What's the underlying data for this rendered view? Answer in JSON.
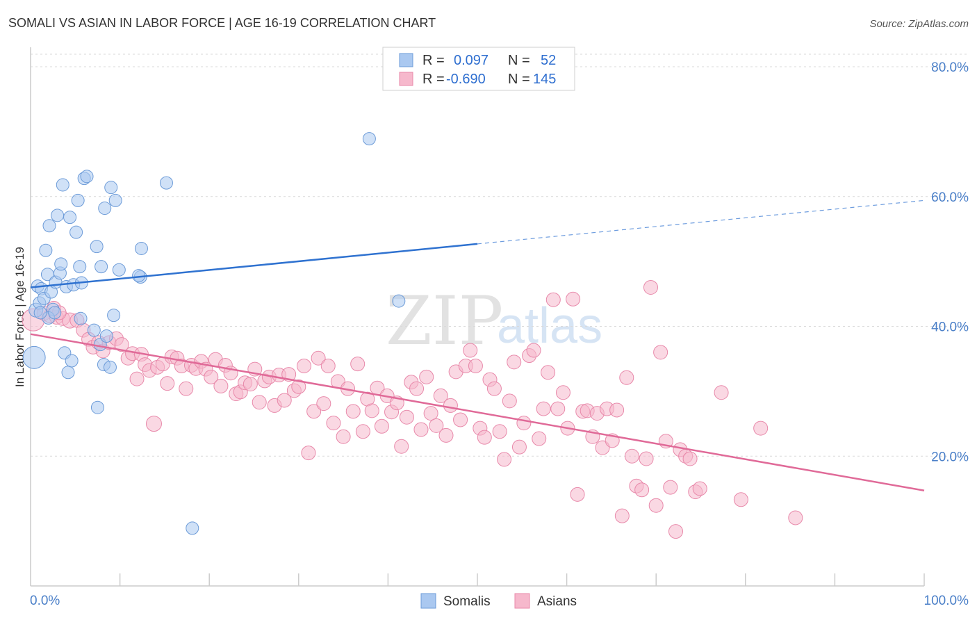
{
  "chart_data": {
    "type": "scatter",
    "title": "SOMALI VS ASIAN IN LABOR FORCE | AGE 16-19 CORRELATION CHART",
    "source": "Source: ZipAtlas.com",
    "ylabel": "In Labor Force | Age 16-19",
    "xlim": [
      0,
      100
    ],
    "ylim": [
      0,
      82
    ],
    "y_ticks": [
      {
        "value": 20,
        "label": "20.0%"
      },
      {
        "value": 40,
        "label": "40.0%"
      },
      {
        "value": 60,
        "label": "60.0%"
      },
      {
        "value": 80,
        "label": "80.0%"
      }
    ],
    "x_tick_labels": {
      "min": "0.0%",
      "max": "100.0%"
    },
    "legend": {
      "somali": {
        "r_label": "R =",
        "r_value": "0.097",
        "n_label": "N =",
        "n_value": "52"
      },
      "asian": {
        "r_label": "R =",
        "r_value": "-0.690",
        "n_label": "N =",
        "n_value": "145"
      }
    },
    "watermark": {
      "zip": "ZIP",
      "atlas": "atlas"
    },
    "colors": {
      "somali_fill": "#aac8f0",
      "somali_stroke": "#6c9bd8",
      "somali_line": "#2f72d0",
      "asian_fill": "#f6b8cc",
      "asian_stroke": "#e889aa",
      "asian_line": "#e06a98",
      "grid": "#d9d9d9",
      "axis": "#cccccc"
    },
    "series": [
      {
        "name": "Somalis",
        "trend": {
          "x0": 0,
          "y0": 46.0,
          "x1": 50,
          "y1": 52.7,
          "x_dash_end": 100,
          "y_dash_end": 59.4
        },
        "points": [
          [
            0.4,
            35.2,
            16
          ],
          [
            0.6,
            42.5,
            10
          ],
          [
            0.8,
            46.2,
            9
          ],
          [
            1.0,
            43.6,
            9
          ],
          [
            1.2,
            45.8,
            9
          ],
          [
            1.5,
            44.3,
            9
          ],
          [
            1.7,
            51.7,
            9
          ],
          [
            1.9,
            48.0,
            9
          ],
          [
            2.1,
            55.5,
            9
          ],
          [
            2.3,
            45.3,
            9
          ],
          [
            2.5,
            42.6,
            9
          ],
          [
            2.8,
            46.8,
            9
          ],
          [
            3.0,
            57.1,
            9
          ],
          [
            3.3,
            48.2,
            9
          ],
          [
            3.4,
            49.6,
            9
          ],
          [
            3.6,
            61.8,
            9
          ],
          [
            3.8,
            35.9,
            9
          ],
          [
            4.0,
            46.1,
            9
          ],
          [
            4.2,
            32.9,
            9
          ],
          [
            4.4,
            56.8,
            9
          ],
          [
            4.6,
            34.7,
            9
          ],
          [
            4.8,
            46.4,
            9
          ],
          [
            5.1,
            54.5,
            9
          ],
          [
            5.3,
            59.4,
            9
          ],
          [
            5.5,
            49.2,
            9
          ],
          [
            5.7,
            46.7,
            9
          ],
          [
            6.0,
            62.8,
            9
          ],
          [
            6.3,
            63.1,
            9
          ],
          [
            7.1,
            39.4,
            9
          ],
          [
            7.4,
            52.3,
            9
          ],
          [
            7.5,
            27.5,
            9
          ],
          [
            7.8,
            37.2,
            9
          ],
          [
            7.9,
            49.2,
            9
          ],
          [
            8.2,
            34.1,
            9
          ],
          [
            8.3,
            58.2,
            9
          ],
          [
            8.5,
            38.5,
            9
          ],
          [
            8.9,
            33.7,
            9
          ],
          [
            9.0,
            61.4,
            9
          ],
          [
            9.3,
            41.7,
            9
          ],
          [
            9.5,
            59.4,
            9
          ],
          [
            9.9,
            48.7,
            9
          ],
          [
            12.3,
            47.6,
            9
          ],
          [
            12.4,
            52.0,
            9
          ],
          [
            12.1,
            47.8,
            9
          ],
          [
            15.2,
            62.1,
            9
          ],
          [
            18.1,
            8.9,
            9
          ],
          [
            37.9,
            68.9,
            9
          ],
          [
            41.2,
            43.9,
            9
          ],
          [
            2.0,
            41.3,
            9
          ],
          [
            5.6,
            41.2,
            9
          ],
          [
            1.1,
            42.1,
            9
          ],
          [
            2.7,
            42.1,
            9
          ]
        ]
      },
      {
        "name": "Asians",
        "trend": {
          "x0": 0,
          "y0": 38.8,
          "x1": 100,
          "y1": 14.7
        },
        "points": [
          [
            0.3,
            41.0,
            16
          ],
          [
            1.5,
            42.0,
            10
          ],
          [
            2.2,
            41.6,
            10
          ],
          [
            2.9,
            41.4,
            10
          ],
          [
            3.6,
            41.2,
            10
          ],
          [
            4.4,
            40.9,
            11
          ],
          [
            5.2,
            40.9,
            10
          ],
          [
            5.9,
            39.4,
            10
          ],
          [
            6.5,
            38.0,
            10
          ],
          [
            7.0,
            36.8,
            10
          ],
          [
            7.6,
            37.5,
            10
          ],
          [
            8.1,
            36.2,
            10
          ],
          [
            8.8,
            37.5,
            10
          ],
          [
            9.6,
            38.1,
            10
          ],
          [
            10.2,
            37.2,
            10
          ],
          [
            10.9,
            35.1,
            10
          ],
          [
            11.4,
            35.8,
            10
          ],
          [
            11.9,
            31.9,
            10
          ],
          [
            12.4,
            35.7,
            10
          ],
          [
            12.8,
            34.1,
            10
          ],
          [
            13.3,
            33.2,
            10
          ],
          [
            13.8,
            25.0,
            11
          ],
          [
            14.2,
            33.7,
            10
          ],
          [
            14.8,
            34.2,
            10
          ],
          [
            15.3,
            31.2,
            10
          ],
          [
            15.8,
            35.3,
            10
          ],
          [
            16.4,
            35.1,
            10
          ],
          [
            16.9,
            33.9,
            10
          ],
          [
            17.4,
            30.4,
            10
          ],
          [
            18.0,
            34.0,
            10
          ],
          [
            18.5,
            33.5,
            10
          ],
          [
            19.1,
            34.6,
            10
          ],
          [
            19.6,
            33.4,
            10
          ],
          [
            20.2,
            32.2,
            10
          ],
          [
            20.7,
            34.9,
            10
          ],
          [
            21.3,
            30.8,
            10
          ],
          [
            21.8,
            34.0,
            10
          ],
          [
            22.4,
            32.8,
            10
          ],
          [
            23.0,
            29.6,
            10
          ],
          [
            23.5,
            29.9,
            10
          ],
          [
            24.0,
            31.3,
            10
          ],
          [
            24.6,
            31.1,
            10
          ],
          [
            25.1,
            33.4,
            10
          ],
          [
            25.6,
            28.3,
            10
          ],
          [
            26.2,
            31.6,
            10
          ],
          [
            26.7,
            32.2,
            10
          ],
          [
            27.3,
            27.8,
            10
          ],
          [
            27.8,
            32.5,
            10
          ],
          [
            28.4,
            28.6,
            10
          ],
          [
            28.9,
            32.6,
            10
          ],
          [
            29.5,
            30.1,
            10
          ],
          [
            30.0,
            30.7,
            10
          ],
          [
            30.6,
            33.9,
            10
          ],
          [
            31.1,
            20.5,
            10
          ],
          [
            31.7,
            26.9,
            10
          ],
          [
            32.2,
            35.1,
            10
          ],
          [
            32.8,
            28.1,
            10
          ],
          [
            33.3,
            33.9,
            10
          ],
          [
            33.9,
            25.1,
            10
          ],
          [
            34.4,
            31.5,
            10
          ],
          [
            35.0,
            23.0,
            10
          ],
          [
            35.5,
            30.4,
            10
          ],
          [
            36.1,
            26.9,
            10
          ],
          [
            36.6,
            34.2,
            10
          ],
          [
            37.2,
            23.8,
            10
          ],
          [
            37.7,
            28.8,
            10
          ],
          [
            38.2,
            27.0,
            10
          ],
          [
            38.8,
            30.5,
            10
          ],
          [
            39.3,
            24.6,
            10
          ],
          [
            39.9,
            29.3,
            10
          ],
          [
            40.4,
            26.8,
            10
          ],
          [
            41.0,
            28.2,
            10
          ],
          [
            41.5,
            21.5,
            10
          ],
          [
            42.1,
            26.0,
            10
          ],
          [
            42.6,
            31.4,
            10
          ],
          [
            43.2,
            30.4,
            10
          ],
          [
            43.7,
            24.1,
            10
          ],
          [
            44.3,
            32.2,
            10
          ],
          [
            44.8,
            26.6,
            10
          ],
          [
            45.4,
            24.7,
            10
          ],
          [
            45.9,
            29.3,
            10
          ],
          [
            46.5,
            23.2,
            10
          ],
          [
            47.0,
            27.8,
            10
          ],
          [
            47.6,
            33.0,
            10
          ],
          [
            48.1,
            25.6,
            10
          ],
          [
            48.7,
            33.9,
            10
          ],
          [
            49.2,
            36.3,
            10
          ],
          [
            49.8,
            33.9,
            10
          ],
          [
            50.3,
            24.3,
            10
          ],
          [
            50.8,
            22.9,
            10
          ],
          [
            51.4,
            31.8,
            10
          ],
          [
            51.9,
            30.4,
            10
          ],
          [
            52.5,
            23.8,
            10
          ],
          [
            53.0,
            19.5,
            10
          ],
          [
            53.6,
            28.5,
            10
          ],
          [
            54.1,
            34.5,
            10
          ],
          [
            54.7,
            21.4,
            10
          ],
          [
            55.2,
            25.1,
            10
          ],
          [
            55.8,
            35.5,
            10
          ],
          [
            56.3,
            36.3,
            10
          ],
          [
            56.9,
            22.7,
            10
          ],
          [
            57.4,
            27.3,
            10
          ],
          [
            57.9,
            32.9,
            10
          ],
          [
            58.5,
            44.1,
            10
          ],
          [
            59.0,
            27.3,
            10
          ],
          [
            59.6,
            29.8,
            10
          ],
          [
            60.1,
            24.3,
            10
          ],
          [
            60.7,
            44.2,
            10
          ],
          [
            61.2,
            14.1,
            10
          ],
          [
            61.8,
            26.9,
            10
          ],
          [
            62.3,
            27.0,
            10
          ],
          [
            62.9,
            23.0,
            10
          ],
          [
            63.4,
            26.6,
            10
          ],
          [
            64.0,
            21.3,
            10
          ],
          [
            64.5,
            27.3,
            10
          ],
          [
            65.1,
            22.4,
            10
          ],
          [
            65.6,
            27.1,
            10
          ],
          [
            66.2,
            10.8,
            10
          ],
          [
            66.7,
            32.1,
            10
          ],
          [
            67.3,
            20.0,
            10
          ],
          [
            67.8,
            15.4,
            10
          ],
          [
            68.4,
            14.8,
            10
          ],
          [
            68.9,
            19.6,
            10
          ],
          [
            69.4,
            46.0,
            10
          ],
          [
            70.0,
            12.4,
            10
          ],
          [
            70.5,
            36.0,
            10
          ],
          [
            71.1,
            22.3,
            10
          ],
          [
            71.6,
            15.2,
            10
          ],
          [
            72.2,
            8.4,
            10
          ],
          [
            72.7,
            21.0,
            10
          ],
          [
            73.3,
            20.0,
            10
          ],
          [
            73.8,
            19.6,
            10
          ],
          [
            74.4,
            14.5,
            10
          ],
          [
            74.9,
            15.0,
            10
          ],
          [
            77.3,
            29.8,
            10
          ],
          [
            79.5,
            13.3,
            10
          ],
          [
            81.7,
            24.3,
            10
          ],
          [
            85.6,
            10.5,
            10
          ],
          [
            2.6,
            42.8,
            10
          ],
          [
            3.2,
            42.1,
            10
          ]
        ]
      }
    ],
    "bottom_legend": [
      "Somalis",
      "Asians"
    ]
  }
}
